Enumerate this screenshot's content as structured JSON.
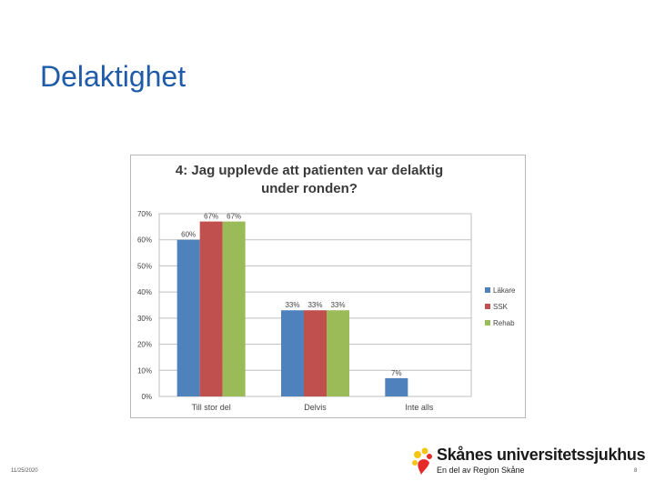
{
  "slide": {
    "title": "Delaktighet",
    "date": "11/25/2020",
    "page_number": "8"
  },
  "logo": {
    "name": "Skånes universitetssjukhus",
    "subtitle": "En del av Region Skåne"
  },
  "chart_data": {
    "type": "bar",
    "title_lines": [
      "4: Jag upplevde att patienten var delaktig",
      "under ronden?"
    ],
    "categories": [
      "Till stor del",
      "Delvis",
      "Inte alls"
    ],
    "series": [
      {
        "name": "Läkare",
        "values": [
          60,
          33,
          7
        ],
        "labels": [
          "60%",
          "33%",
          "7%"
        ],
        "color": "#4f81bd"
      },
      {
        "name": "SSK",
        "values": [
          67,
          33,
          0
        ],
        "labels": [
          "67%",
          "33%",
          ""
        ],
        "color": "#c0504d"
      },
      {
        "name": "Rehab",
        "values": [
          67,
          33,
          0
        ],
        "labels": [
          "67%",
          "33%",
          ""
        ],
        "color": "#9bbb59"
      }
    ],
    "y_ticks": [
      "0%",
      "10%",
      "20%",
      "30%",
      "40%",
      "50%",
      "60%",
      "70%"
    ],
    "ylim": [
      0,
      70
    ],
    "grid": true,
    "legend_position": "right"
  }
}
